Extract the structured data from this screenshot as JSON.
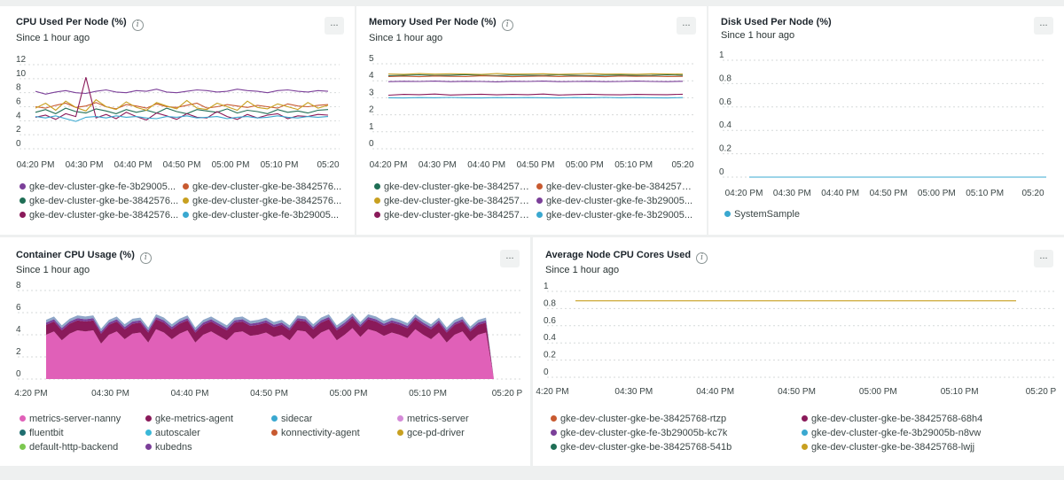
{
  "panels": [
    {
      "id": "cpu",
      "title": "CPU Used Per Node (%)",
      "subtitle": "Since 1 hour ago",
      "more": "...",
      "chart_data": {
        "type": "line",
        "title": "CPU Used Per Node (%)",
        "xlabel": "",
        "ylabel": "",
        "x_ticks": [
          "04:20 PM",
          "04:30 PM",
          "04:40 PM",
          "04:50 PM",
          "05:00 PM",
          "05:10 PM",
          "05:20"
        ],
        "y_ticks": [
          "0",
          "2",
          "4",
          "6",
          "8",
          "10",
          "12"
        ],
        "ylim": [
          0,
          12
        ],
        "grid": true,
        "series": [
          {
            "name": "gke-dev-cluster-gke-fe-3b29005...",
            "color": "#7b3f99",
            "values": [
              8.2,
              7.8,
              8.1,
              8.3,
              8.0,
              7.9,
              8.2,
              8.4,
              8.1,
              8.0,
              8.3,
              8.2,
              8.5,
              8.1,
              8.0,
              8.2,
              8.4,
              8.3,
              8.1,
              8.2,
              8.5,
              8.3,
              8.2,
              8.0,
              8.3,
              8.4,
              8.2,
              8.1,
              8.3,
              8.2
            ]
          },
          {
            "name": "gke-dev-cluster-gke-be-3842576...",
            "color": "#c85a30",
            "values": [
              6.0,
              5.8,
              6.2,
              6.5,
              5.9,
              6.1,
              6.6,
              6.0,
              5.7,
              6.3,
              6.1,
              5.8,
              6.4,
              6.0,
              5.9,
              6.2,
              6.5,
              5.8,
              6.0,
              6.3,
              6.1,
              5.9,
              6.2,
              6.0,
              5.8,
              6.4,
              6.1,
              6.0,
              6.2,
              6.3
            ]
          },
          {
            "name": "gke-dev-cluster-gke-be-3842576...",
            "color": "#1f6e55",
            "values": [
              5.2,
              5.6,
              5.0,
              5.8,
              5.3,
              5.1,
              5.7,
              5.4,
              5.0,
              5.6,
              5.2,
              5.5,
              5.1,
              5.8,
              5.3,
              5.0,
              5.6,
              5.4,
              5.2,
              5.7,
              5.1,
              5.5,
              5.3,
              5.0,
              5.6,
              5.2,
              5.4,
              5.1,
              5.5,
              5.6
            ]
          },
          {
            "name": "gke-dev-cluster-gke-be-3842576...",
            "color": "#c8a020",
            "values": [
              5.8,
              6.5,
              5.5,
              6.8,
              5.9,
              5.4,
              7.0,
              6.0,
              5.6,
              6.7,
              5.9,
              5.5,
              6.6,
              6.1,
              5.7,
              6.9,
              5.8,
              5.6,
              6.5,
              6.0,
              5.5,
              6.8,
              5.9,
              5.7,
              6.4,
              6.0,
              5.6,
              6.6,
              5.8,
              6.2
            ]
          },
          {
            "name": "gke-dev-cluster-gke-be-3842576...",
            "color": "#8a1a5a",
            "values": [
              4.5,
              4.8,
              4.2,
              5.0,
              4.6,
              10.2,
              4.4,
              4.9,
              4.3,
              5.2,
              4.6,
              4.1,
              5.1,
              4.7,
              4.2,
              5.0,
              4.5,
              4.4,
              5.3,
              4.6,
              4.2,
              4.9,
              4.4,
              4.8,
              5.0,
              4.3,
              4.7,
              4.6,
              4.9,
              4.8
            ]
          },
          {
            "name": "gke-dev-cluster-gke-fe-3b29005...",
            "color": "#3aa8d0",
            "values": [
              4.6,
              4.4,
              4.7,
              4.3,
              3.9,
              4.5,
              4.6,
              4.4,
              4.7,
              4.5,
              4.6,
              4.4,
              4.3,
              4.6,
              4.5,
              4.7,
              4.4,
              4.5,
              4.6,
              4.3,
              4.5,
              4.6,
              4.4,
              4.5,
              4.7,
              4.5,
              4.4,
              4.6,
              4.5,
              4.6
            ]
          }
        ]
      }
    },
    {
      "id": "mem",
      "title": "Memory Used Per Node (%)",
      "subtitle": "Since 1 hour ago",
      "more": "...",
      "chart_data": {
        "type": "line",
        "title": "Memory Used Per Node (%)",
        "xlabel": "",
        "ylabel": "",
        "x_ticks": [
          "04:20 PM",
          "04:30 PM",
          "04:40 PM",
          "04:50 PM",
          "05:00 PM",
          "05:10 PM",
          "05:20"
        ],
        "y_ticks": [
          "0",
          "1",
          "2",
          "3",
          "4",
          "5"
        ],
        "ylim": [
          0,
          5
        ],
        "grid": true,
        "series": [
          {
            "name": "gke-dev-cluster-gke-be-3842576...",
            "color": "#1f6e55",
            "values": [
              4.3,
              4.32,
              4.35,
              4.31,
              4.33,
              4.36,
              4.32,
              4.3,
              4.34,
              4.33,
              4.31,
              4.35,
              4.32,
              4.3,
              4.33,
              4.34,
              4.31,
              4.32,
              4.35,
              4.33
            ]
          },
          {
            "name": "gke-dev-cluster-gke-be-3842576...",
            "color": "#c85a30",
            "values": [
              4.25,
              4.27,
              4.24,
              4.28,
              4.26,
              4.25,
              4.29,
              4.27,
              4.24,
              4.26,
              4.28,
              4.25,
              4.27,
              4.26,
              4.24,
              4.28,
              4.26,
              4.27,
              4.25,
              4.26
            ]
          },
          {
            "name": "gke-dev-cluster-gke-be-3842576...",
            "color": "#c8a020",
            "values": [
              4.4,
              4.38,
              4.42,
              4.39,
              4.41,
              4.4,
              4.37,
              4.42,
              4.39,
              4.4,
              4.41,
              4.38,
              4.4,
              4.42,
              4.39,
              4.4,
              4.38,
              4.41,
              4.4,
              4.39
            ]
          },
          {
            "name": "gke-dev-cluster-gke-fe-3b29005...",
            "color": "#7b3f99",
            "values": [
              3.95,
              3.97,
              3.96,
              3.98,
              3.95,
              3.97,
              3.96,
              3.94,
              3.97,
              3.96,
              3.98,
              3.95,
              3.96,
              3.97,
              3.95,
              3.96,
              3.98,
              3.96,
              3.95,
              3.97
            ]
          },
          {
            "name": "gke-dev-cluster-gke-be-3842576...",
            "color": "#8a1a5a",
            "values": [
              3.15,
              3.2,
              3.18,
              3.22,
              3.16,
              3.19,
              3.21,
              3.17,
              3.2,
              3.18,
              3.22,
              3.16,
              3.19,
              3.21,
              3.18,
              3.17,
              3.2,
              3.19,
              3.18,
              3.21
            ]
          },
          {
            "name": "gke-dev-cluster-gke-fe-3b29005...",
            "color": "#3aa8d0",
            "values": [
              3.0,
              2.99,
              3.01,
              3.0,
              3.02,
              3.0,
              2.99,
              3.01,
              3.0,
              3.01,
              3.0,
              2.99,
              3.01,
              3.0,
              3.02,
              3.0,
              3.01,
              3.0,
              2.99,
              3.01
            ]
          }
        ]
      }
    },
    {
      "id": "disk",
      "title": "Disk Used Per Node (%)",
      "subtitle": "Since 1 hour ago",
      "more": "...",
      "chart_data": {
        "type": "line",
        "title": "Disk Used Per Node (%)",
        "xlabel": "",
        "ylabel": "",
        "x_ticks": [
          "04:20 PM",
          "04:30 PM",
          "04:40 PM",
          "04:50 PM",
          "05:00 PM",
          "05:10 PM",
          "05:20"
        ],
        "y_ticks": [
          "0",
          "0.2",
          "0.4",
          "0.6",
          "0.8",
          "1"
        ],
        "ylim": [
          0,
          1
        ],
        "grid": true,
        "series": [
          {
            "name": "SystemSample",
            "color": "#3aa8d0",
            "values": [
              0,
              0,
              0,
              0,
              0,
              0,
              0,
              0,
              0,
              0
            ]
          }
        ]
      }
    },
    {
      "id": "container",
      "title": "Container CPU Usage (%)",
      "subtitle": "Since 1 hour ago",
      "more": "...",
      "chart_data": {
        "type": "area",
        "title": "Container CPU Usage (%)",
        "xlabel": "",
        "ylabel": "",
        "x_ticks": [
          "4:20 PM",
          "04:30 PM",
          "04:40 PM",
          "04:50 PM",
          "05:00 PM",
          "05:10 PM",
          "05:20 P"
        ],
        "y_ticks": [
          "0",
          "2",
          "4",
          "6",
          "8"
        ],
        "ylim": [
          0,
          8
        ],
        "grid": true,
        "series": [
          {
            "name": "metrics-server-nanny",
            "color": "#e060b8",
            "values": [
              4.0,
              4.3,
              3.5,
              4.1,
              4.4,
              4.3,
              4.4,
              3.2,
              4.0,
              4.3,
              3.6,
              4.1,
              4.2,
              3.3,
              4.5,
              4.2,
              3.6,
              4.1,
              4.4,
              3.3,
              4.0,
              4.3,
              3.9,
              3.5,
              4.2,
              4.3,
              3.9,
              4.0,
              4.2,
              3.8,
              4.0,
              3.5,
              4.4,
              4.3,
              3.6,
              4.2,
              4.5,
              3.5,
              4.0,
              4.6,
              3.8,
              4.5,
              4.3,
              3.9,
              4.2,
              4.0,
              3.7,
              4.5,
              4.0,
              3.6,
              4.2,
              3.3,
              4.0,
              4.3,
              3.4,
              4.0,
              4.2,
              0
            ]
          },
          {
            "name": "gke-metrics-agent",
            "color": "#8a1a5a",
            "values": [
              0.9,
              0.9,
              0.9,
              0.9,
              0.9,
              0.9,
              0.9,
              0.9,
              0.9,
              0.9,
              0.9,
              0.9,
              0.9,
              0.9,
              0.9,
              0.9,
              0.9,
              0.9,
              0.9,
              0.9,
              0.9,
              0.9,
              0.9,
              0.9,
              0.9,
              0.9,
              0.9,
              0.9,
              0.9,
              0.9,
              0.9,
              0.9,
              0.9,
              0.9,
              0.9,
              0.9,
              0.9,
              0.9,
              0.9,
              0.9,
              0.9,
              0.9,
              0.9,
              0.9,
              0.9,
              0.9,
              0.9,
              0.9,
              0.9,
              0.9,
              0.9,
              0.9,
              0.9,
              0.9,
              0.9,
              0.9,
              0.9,
              0
            ]
          },
          {
            "name": "kubedns",
            "color": "#7b3f99",
            "values": [
              0.2,
              0.2,
              0.2,
              0.2,
              0.2,
              0.2,
              0.2,
              0.2,
              0.2,
              0.2,
              0.2,
              0.2,
              0.2,
              0.2,
              0.2,
              0.2,
              0.2,
              0.2,
              0.2,
              0.2,
              0.2,
              0.2,
              0.2,
              0.2,
              0.2,
              0.2,
              0.2,
              0.2,
              0.2,
              0.2,
              0.2,
              0.2,
              0.2,
              0.2,
              0.2,
              0.2,
              0.2,
              0.2,
              0.2,
              0.2,
              0.2,
              0.2,
              0.2,
              0.2,
              0.2,
              0.2,
              0.2,
              0.2,
              0.2,
              0.2,
              0.2,
              0.2,
              0.2,
              0.2,
              0.2,
              0.2,
              0.2,
              0
            ]
          },
          {
            "name": "sidecar",
            "color": "#8fa6c8",
            "values": [
              0.25,
              0.25,
              0.25,
              0.25,
              0.25,
              0.25,
              0.25,
              0.25,
              0.25,
              0.25,
              0.25,
              0.25,
              0.25,
              0.25,
              0.25,
              0.25,
              0.25,
              0.25,
              0.25,
              0.25,
              0.25,
              0.25,
              0.25,
              0.25,
              0.25,
              0.25,
              0.25,
              0.25,
              0.25,
              0.25,
              0.25,
              0.25,
              0.25,
              0.25,
              0.25,
              0.25,
              0.25,
              0.25,
              0.25,
              0.25,
              0.25,
              0.25,
              0.25,
              0.25,
              0.25,
              0.25,
              0.25,
              0.25,
              0.25,
              0.25,
              0.25,
              0.25,
              0.25,
              0.25,
              0.25,
              0.25,
              0.25,
              0
            ]
          }
        ]
      }
    },
    {
      "id": "cores",
      "title": "Average Node CPU Cores Used",
      "subtitle": "Since 1 hour ago",
      "more": "...",
      "chart_data": {
        "type": "line",
        "title": "Average Node CPU Cores Used",
        "xlabel": "",
        "ylabel": "",
        "x_ticks": [
          "4:20 PM",
          "04:30 PM",
          "04:40 PM",
          "04:50 PM",
          "05:00 PM",
          "05:10 PM",
          "05:20 P"
        ],
        "y_ticks": [
          "0",
          "0.2",
          "0.4",
          "0.6",
          "0.8",
          "1"
        ],
        "ylim": [
          0,
          1
        ],
        "grid": true,
        "series": [
          {
            "name": "gke-dev-cluster-gke-be-38425768-lwjj",
            "color": "#c8a020",
            "values": [
              0.89,
              0.89,
              0.89,
              0.89,
              0.89,
              0.89,
              0.89,
              0.89,
              0.89,
              0.89
            ]
          }
        ]
      }
    }
  ],
  "legends": {
    "cpu": [
      {
        "label": "gke-dev-cluster-gke-fe-3b29005...",
        "color": "#7b3f99"
      },
      {
        "label": "gke-dev-cluster-gke-be-3842576...",
        "color": "#c85a30"
      },
      {
        "label": "gke-dev-cluster-gke-be-3842576...",
        "color": "#1f6e55"
      },
      {
        "label": "gke-dev-cluster-gke-be-3842576...",
        "color": "#c8a020"
      },
      {
        "label": "gke-dev-cluster-gke-be-3842576...",
        "color": "#8a1a5a"
      },
      {
        "label": "gke-dev-cluster-gke-fe-3b29005...",
        "color": "#3aa8d0"
      }
    ],
    "mem": [
      {
        "label": "gke-dev-cluster-gke-be-3842576...",
        "color": "#1f6e55"
      },
      {
        "label": "gke-dev-cluster-gke-be-3842576...",
        "color": "#c85a30"
      },
      {
        "label": "gke-dev-cluster-gke-be-3842576...",
        "color": "#c8a020"
      },
      {
        "label": "gke-dev-cluster-gke-fe-3b29005...",
        "color": "#7b3f99"
      },
      {
        "label": "gke-dev-cluster-gke-be-3842576...",
        "color": "#8a1a5a"
      },
      {
        "label": "gke-dev-cluster-gke-fe-3b29005...",
        "color": "#3aa8d0"
      }
    ],
    "disk": [
      {
        "label": "SystemSample",
        "color": "#3aa8d0"
      }
    ],
    "container": [
      {
        "label": "metrics-server-nanny",
        "color": "#e060b8"
      },
      {
        "label": "gke-metrics-agent",
        "color": "#8a1a5a"
      },
      {
        "label": "sidecar",
        "color": "#3aa8d0"
      },
      {
        "label": "metrics-server",
        "color": "#d48ad8"
      },
      {
        "label": "fluentbit",
        "color": "#1f6e70"
      },
      {
        "label": "autoscaler",
        "color": "#3ab8d8"
      },
      {
        "label": "konnectivity-agent",
        "color": "#c85a30"
      },
      {
        "label": "gce-pd-driver",
        "color": "#c8a020"
      },
      {
        "label": "default-http-backend",
        "color": "#7cc850"
      },
      {
        "label": "kubedns",
        "color": "#7b3f99"
      }
    ],
    "cores": [
      {
        "label": "gke-dev-cluster-gke-be-38425768-rtzp",
        "color": "#c85a30"
      },
      {
        "label": "gke-dev-cluster-gke-be-38425768-68h4",
        "color": "#8a1a5a"
      },
      {
        "label": "gke-dev-cluster-gke-fe-3b29005b-kc7k",
        "color": "#7b3f99"
      },
      {
        "label": "gke-dev-cluster-gke-fe-3b29005b-n8vw",
        "color": "#3aa8d0"
      },
      {
        "label": "gke-dev-cluster-gke-be-38425768-541b",
        "color": "#1f6e55"
      },
      {
        "label": "gke-dev-cluster-gke-be-38425768-lwjj",
        "color": "#c8a020"
      }
    ]
  }
}
